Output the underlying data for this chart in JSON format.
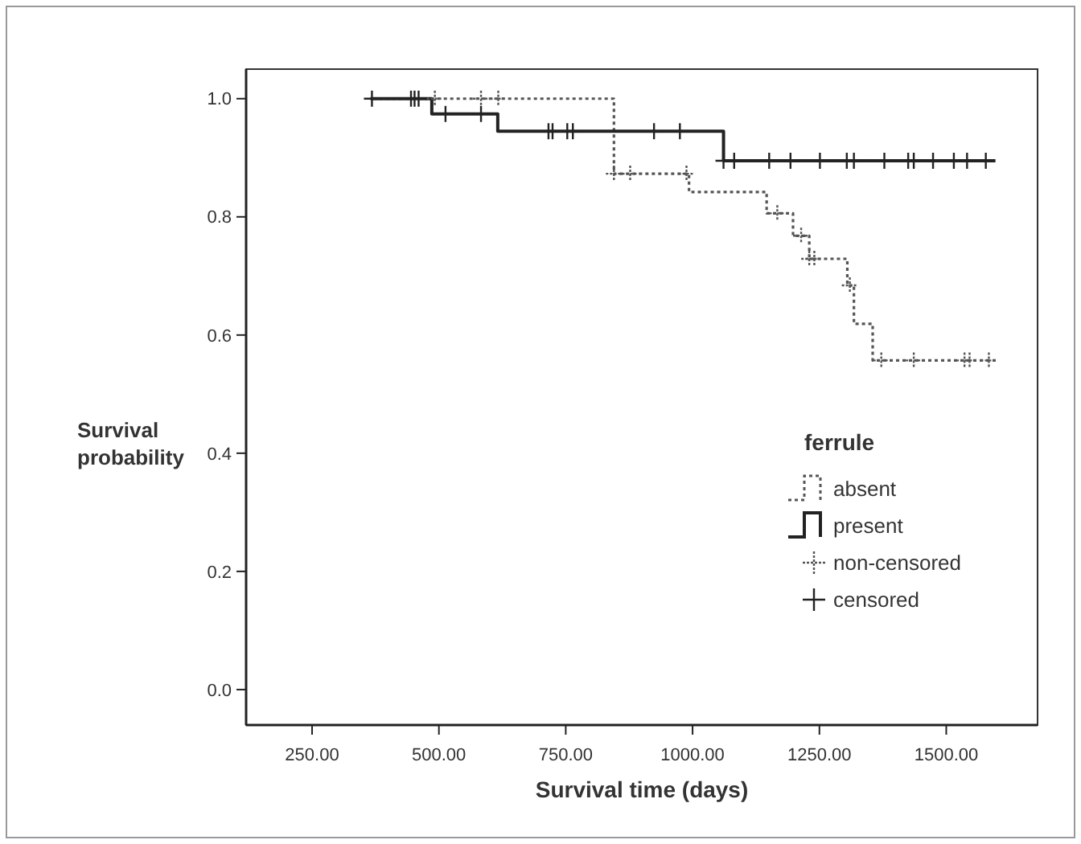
{
  "chart_data": {
    "type": "step",
    "xlabel": "Survival time (days)",
    "ylabel": "Survival probability",
    "legend_title": "ferrule",
    "legend": "right",
    "grid": false,
    "xlim": [
      120,
      1680
    ],
    "ylim": [
      -0.06,
      1.05
    ],
    "xticks": [
      {
        "value": 250,
        "label": "250.00"
      },
      {
        "value": 500,
        "label": "500.00"
      },
      {
        "value": 750,
        "label": "750.00"
      },
      {
        "value": 1000,
        "label": "1000.00"
      },
      {
        "value": 1250,
        "label": "1250.00"
      },
      {
        "value": 1500,
        "label": "1500.00"
      }
    ],
    "yticks": [
      {
        "value": 0,
        "label": "0.0"
      },
      {
        "value": 0.2,
        "label": "0.2"
      },
      {
        "value": 0.4,
        "label": "0.4"
      },
      {
        "value": 0.6,
        "label": "0.6"
      },
      {
        "value": 0.8,
        "label": "0.8"
      },
      {
        "value": 1,
        "label": "1.0"
      }
    ],
    "series": [
      {
        "name": "absent",
        "type": "step",
        "color": "#555555",
        "line_style": "dotted",
        "marker": "none",
        "x": [
          370,
          845,
          993,
          1146,
          1198,
          1230,
          1305,
          1318,
          1355,
          1599
        ],
        "values": [
          1.0,
          0.873,
          0.842,
          0.806,
          0.768,
          0.729,
          0.684,
          0.619,
          0.557,
          0.557
        ]
      },
      {
        "name": "present",
        "type": "step",
        "color": "#222222",
        "line_style": "solid",
        "marker": "none",
        "x": [
          365,
          486,
          616,
          1061,
          1597
        ],
        "values": [
          1.0,
          0.974,
          0.945,
          0.895,
          0.895
        ]
      },
      {
        "name": "non-censored",
        "type": "scatter",
        "color": "#555555",
        "line_style": "dotted",
        "marker": "cross",
        "x": [
          492,
          583,
          617,
          845,
          877,
          988,
          1167,
          1214,
          1230,
          1240,
          1310,
          1372,
          1436,
          1536,
          1546,
          1584
        ],
        "values": [
          1.0,
          1.0,
          1.0,
          0.873,
          0.873,
          0.873,
          0.806,
          0.768,
          0.729,
          0.729,
          0.684,
          0.557,
          0.557,
          0.557,
          0.557,
          0.557
        ]
      },
      {
        "name": "censored",
        "type": "scatter",
        "color": "#222222",
        "line_style": "solid",
        "marker": "cross",
        "x": [
          368,
          445,
          452,
          460,
          513,
          583,
          716,
          724,
          753,
          764,
          924,
          975,
          1061,
          1082,
          1151,
          1193,
          1251,
          1304,
          1318,
          1378,
          1425,
          1436,
          1474,
          1515,
          1541,
          1578
        ],
        "values": [
          1.0,
          1.0,
          1.0,
          1.0,
          0.974,
          0.974,
          0.945,
          0.945,
          0.945,
          0.945,
          0.945,
          0.945,
          0.895,
          0.895,
          0.895,
          0.895,
          0.895,
          0.895,
          0.895,
          0.895,
          0.895,
          0.895,
          0.895,
          0.895,
          0.895,
          0.895
        ]
      }
    ]
  }
}
